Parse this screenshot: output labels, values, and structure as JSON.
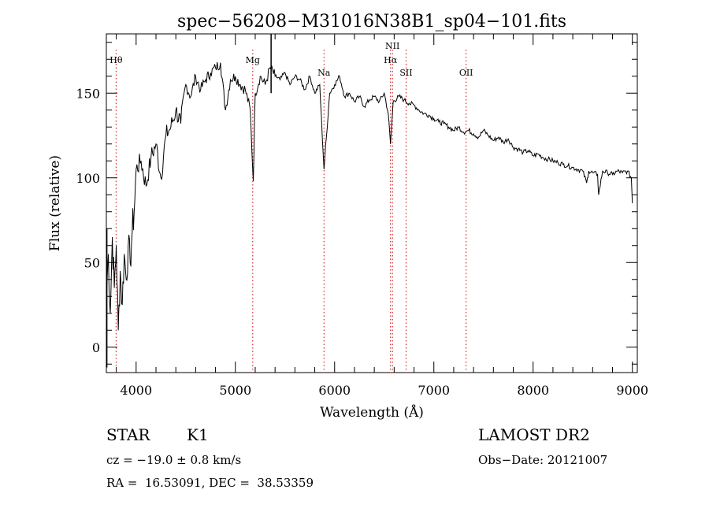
{
  "chart_data": {
    "type": "line",
    "title": "spec−56208−M31016N38B1_sp04−101.fits",
    "xlabel": "Wavelength (Å)",
    "ylabel": "Flux (relative)",
    "xlim": [
      3700,
      9050
    ],
    "ylim": [
      -15,
      185
    ],
    "x_ticks": [
      4000,
      5000,
      6000,
      7000,
      8000,
      9000
    ],
    "y_ticks": [
      0,
      50,
      100,
      150
    ],
    "x_tick_labels": [
      "4000",
      "5000",
      "6000",
      "7000",
      "8000",
      "9000"
    ],
    "y_tick_labels": [
      "0",
      "50",
      "100",
      "150"
    ],
    "series": [
      {
        "name": "flux",
        "x": [
          3700,
          3720,
          3740,
          3760,
          3780,
          3800,
          3820,
          3840,
          3860,
          3880,
          3900,
          3920,
          3940,
          3960,
          3980,
          4000,
          4050,
          4100,
          4150,
          4200,
          4250,
          4300,
          4350,
          4400,
          4450,
          4500,
          4550,
          4600,
          4650,
          4700,
          4750,
          4800,
          4850,
          4900,
          4950,
          5000,
          5050,
          5100,
          5150,
          5180,
          5200,
          5250,
          5300,
          5350,
          5400,
          5450,
          5500,
          5550,
          5600,
          5650,
          5700,
          5750,
          5800,
          5850,
          5893,
          5950,
          6000,
          6050,
          6100,
          6150,
          6200,
          6250,
          6300,
          6350,
          6400,
          6450,
          6500,
          6540,
          6563,
          6590,
          6650,
          6700,
          6750,
          6800,
          6850,
          6900,
          6950,
          7000,
          7050,
          7100,
          7150,
          7200,
          7250,
          7300,
          7350,
          7400,
          7450,
          7500,
          7550,
          7600,
          7650,
          7700,
          7750,
          7800,
          7850,
          7900,
          7950,
          8000,
          8050,
          8100,
          8150,
          8200,
          8250,
          8300,
          8350,
          8400,
          8450,
          8500,
          8540,
          8560,
          8600,
          8650,
          8660,
          8700,
          8750,
          8800,
          8850,
          8900,
          8950,
          8990,
          9000
        ],
        "y": [
          30,
          55,
          20,
          65,
          35,
          60,
          10,
          45,
          25,
          55,
          40,
          60,
          50,
          68,
          80,
          105,
          110,
          95,
          112,
          120,
          100,
          125,
          130,
          140,
          132,
          155,
          148,
          160,
          152,
          158,
          162,
          165,
          168,
          140,
          158,
          160,
          155,
          152,
          140,
          98,
          150,
          160,
          155,
          165,
          160,
          158,
          162,
          155,
          160,
          158,
          152,
          160,
          150,
          155,
          105,
          150,
          155,
          160,
          148,
          150,
          145,
          148,
          142,
          146,
          148,
          145,
          150,
          138,
          120,
          145,
          148,
          146,
          144,
          143,
          140,
          138,
          137,
          135,
          133,
          132,
          130,
          128,
          130,
          127,
          128,
          126,
          124,
          128,
          125,
          122,
          124,
          121,
          123,
          118,
          117,
          115,
          116,
          113,
          114,
          112,
          111,
          110,
          109,
          108,
          107,
          106,
          105,
          104,
          97,
          104,
          103,
          102,
          90,
          104,
          103,
          102,
          104,
          103,
          104,
          100,
          85
        ]
      }
    ],
    "line_markers": [
      {
        "label": "Hθ",
        "x": 3798,
        "row": "upper"
      },
      {
        "label": "Mg",
        "x": 5175,
        "row": "upper"
      },
      {
        "label": "Na",
        "x": 5893,
        "row": "lower"
      },
      {
        "label": "NII",
        "x": 6583,
        "row": "top"
      },
      {
        "label": "Hα",
        "x": 6563,
        "row": "upper"
      },
      {
        "label": "SII",
        "x": 6720,
        "row": "lower"
      },
      {
        "label": "OII",
        "x": 7325,
        "row": "lower"
      }
    ]
  },
  "info": {
    "class_label": "STAR",
    "subclass_label": "K1",
    "survey_label": "LAMOST DR2",
    "cz_text": "cz = −19.0 ± 0.8 km/s",
    "obs_date": "Obs−Date: 20121007",
    "radec_text": "RA =  16.53091, DEC =  38.53359"
  }
}
